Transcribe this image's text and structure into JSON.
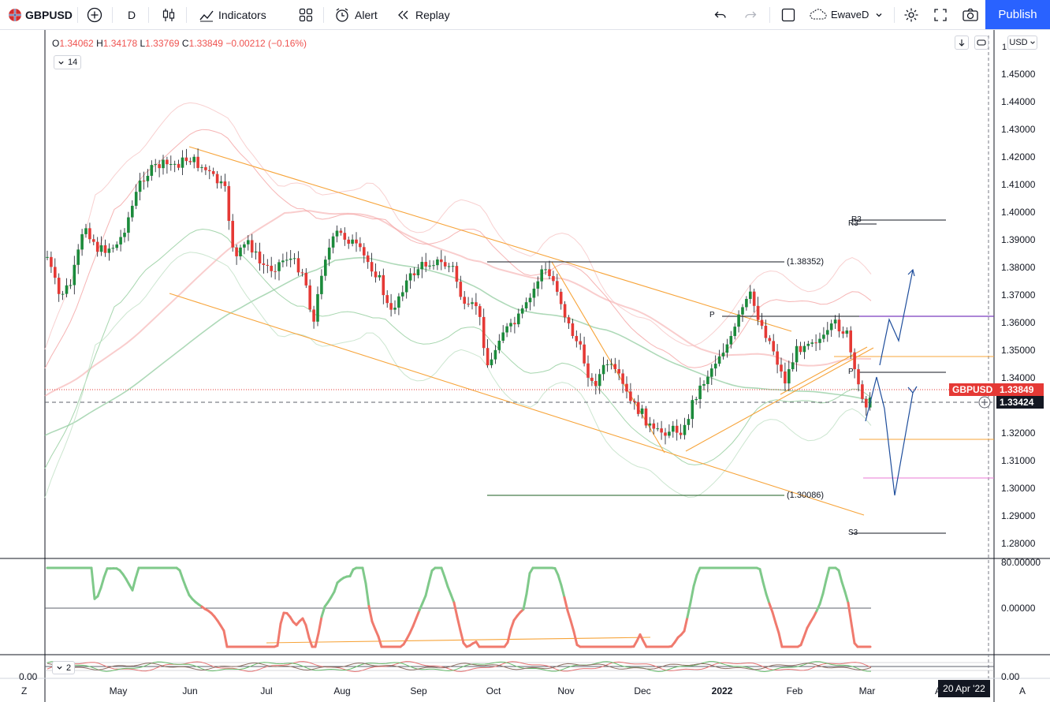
{
  "toolbar": {
    "symbol": "GBPUSD",
    "interval": "D",
    "indicators_label": "Indicators",
    "alert_label": "Alert",
    "replay_label": "Replay",
    "layout_name": "EwaveD",
    "publish_label": "Publish"
  },
  "legend": {
    "open_label": "O",
    "open": "1.34062",
    "high_label": "H",
    "high": "1.34178",
    "low_label": "L",
    "low": "1.33769",
    "close_label": "C",
    "close": "1.33849",
    "change": "−0.00212 (−0.16%)",
    "indicator_value": "14",
    "lower_value": "2"
  },
  "price_axis": {
    "currency": "USD",
    "ticks": [
      "1.45000",
      "1.44000",
      "1.43000",
      "1.42000",
      "1.41000",
      "1.40000",
      "1.39000",
      "1.38000",
      "1.37000",
      "1.36000",
      "1.35000",
      "1.34000",
      "1.33000",
      "1.32000",
      "1.31000",
      "1.30000",
      "1.29000",
      "1.28000"
    ],
    "top_cut": "1",
    "symbol_tag": "GBPUSD",
    "last_price": "1.33849",
    "crosshair_price": "1.33424"
  },
  "annotations": {
    "level_high": "(1.38352)",
    "level_low": "(1.30086)",
    "pivot_p1": "P",
    "pivot_p2": "P",
    "r3_a": "R3",
    "r3_b": "R3",
    "s3": "S3"
  },
  "oscillator": {
    "tick_top": "80.00000",
    "tick_mid": "0.00000"
  },
  "lower": {
    "tick_left": "0.00",
    "tick_right": "0.00"
  },
  "time_axis": {
    "months": [
      "May",
      "Jun",
      "Jul",
      "Aug",
      "Sep",
      "Oct",
      "Nov",
      "Dec",
      "2022",
      "Feb",
      "Mar",
      "A"
    ],
    "crosshair_date": "20 Apr '22",
    "left_corner": "Z",
    "right_corner": "A"
  },
  "colors": {
    "up": "#26a69a",
    "candle_up": "#1b8a3b",
    "down": "#e53935",
    "accent": "#2962ff",
    "trend": "#f7a43a",
    "wave": "#1f4e9c"
  }
}
